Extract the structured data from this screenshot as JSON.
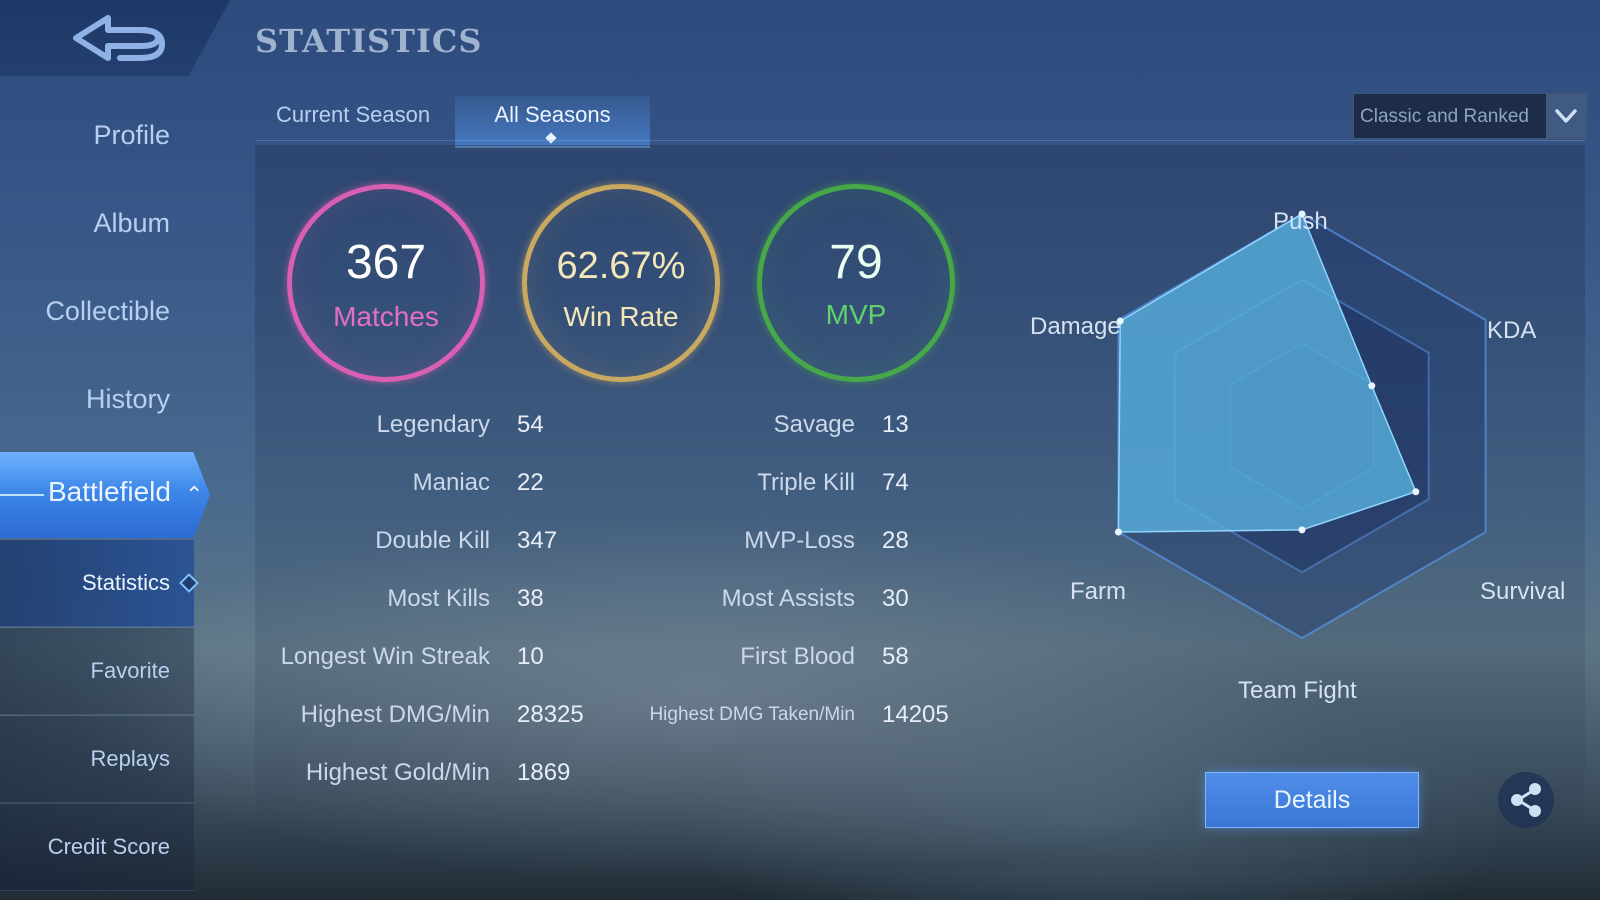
{
  "header": {
    "title": "STATISTICS"
  },
  "sidebar": {
    "items": [
      "Profile",
      "Album",
      "Collectible",
      "History"
    ],
    "battlefield": "Battlefield",
    "sub_items": [
      "Statistics",
      "Favorite",
      "Replays",
      "Credit Score"
    ]
  },
  "tabs": [
    "Current Season",
    "All Seasons"
  ],
  "mode_select": {
    "value": "Classic and Ranked"
  },
  "summary": {
    "matches": {
      "value": "367",
      "label": "Matches"
    },
    "win_rate": {
      "value": "62.67%",
      "label": "Win Rate"
    },
    "mvp": {
      "value": "79",
      "label": "MVP"
    }
  },
  "stats_left": [
    {
      "label": "Legendary",
      "value": "54"
    },
    {
      "label": "Maniac",
      "value": "22"
    },
    {
      "label": "Double Kill",
      "value": "347"
    },
    {
      "label": "Most Kills",
      "value": "38"
    },
    {
      "label": "Longest Win Streak",
      "value": "10"
    },
    {
      "label": "Highest DMG/Min",
      "value": "28325"
    },
    {
      "label": "Highest Gold/Min",
      "value": "1869"
    }
  ],
  "stats_right": [
    {
      "label": "Savage",
      "value": "13"
    },
    {
      "label": "Triple Kill",
      "value": "74"
    },
    {
      "label": "MVP-Loss",
      "value": "28"
    },
    {
      "label": "Most Assists",
      "value": "30"
    },
    {
      "label": "First Blood",
      "value": "58"
    },
    {
      "label": "Highest DMG Taken/Min",
      "value": "14205"
    }
  ],
  "radar": {
    "axes": [
      "Push",
      "KDA",
      "Survival",
      "Team Fight",
      "Farm",
      "Damage"
    ],
    "values": [
      1.0,
      0.38,
      0.62,
      0.49,
      1.0,
      0.99
    ]
  },
  "actions": {
    "details": "Details"
  },
  "colors": {
    "matches": "#d95fb2",
    "win_rate": "#c9a95f",
    "mvp": "#47a84a",
    "radar_fill": "#5ab4e0"
  },
  "icons": {
    "back": "back-arrow-icon",
    "share": "share-icon",
    "dropdown": "chevron-down-icon"
  }
}
